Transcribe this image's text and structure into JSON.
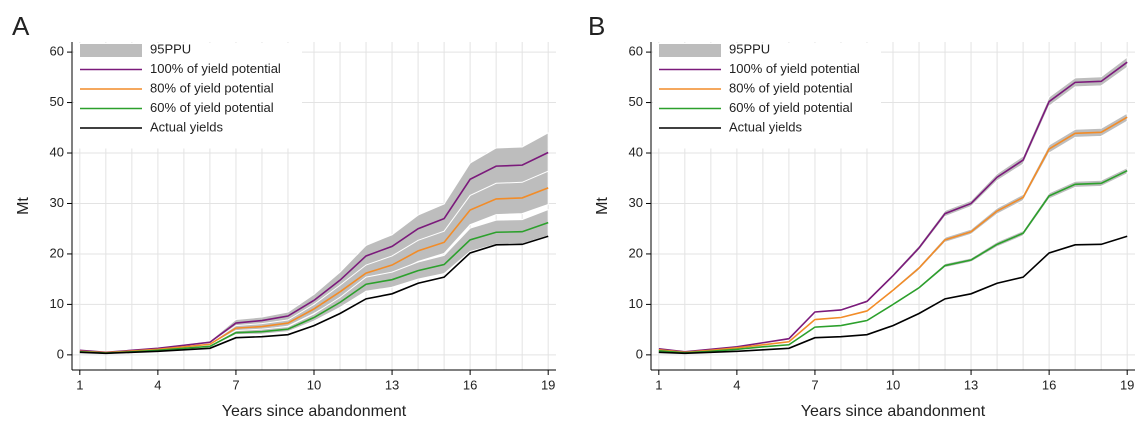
{
  "chart_data": [
    {
      "type": "line",
      "panel_label": "A",
      "xlabel": "Years since abandonment",
      "ylabel": "Mt",
      "x": [
        1,
        2,
        3,
        4,
        5,
        6,
        7,
        8,
        9,
        10,
        11,
        12,
        13,
        14,
        15,
        16,
        17,
        18,
        19
      ],
      "xlim": [
        0.7,
        19.3
      ],
      "xticks": [
        1,
        4,
        7,
        10,
        13,
        16,
        19
      ],
      "ylim": [
        -3,
        62
      ],
      "yticks": [
        0,
        10,
        20,
        30,
        40,
        50,
        60
      ],
      "grid": true,
      "band_label": "95PPU",
      "band_color": "#bdbdbd",
      "series": [
        {
          "name": "100% of yield potential",
          "color": "#7b1a7b",
          "values": [
            0.9,
            0.5,
            0.9,
            1.3,
            1.9,
            2.5,
            6.3,
            6.8,
            7.7,
            10.8,
            14.8,
            19.6,
            21.5,
            25.0,
            27.0,
            34.8,
            37.4,
            37.6,
            40.1
          ],
          "lower": [
            0.8,
            0.4,
            0.8,
            1.1,
            1.7,
            2.2,
            5.7,
            6.1,
            6.9,
            9.7,
            13.3,
            17.6,
            19.3,
            22.5,
            24.3,
            31.3,
            33.7,
            33.8,
            36.1
          ],
          "upper": [
            1.0,
            0.6,
            1.0,
            1.5,
            2.1,
            2.8,
            7.0,
            7.5,
            8.5,
            12.0,
            16.4,
            21.7,
            23.8,
            27.7,
            29.9,
            38.0,
            41.0,
            41.2,
            44.0
          ]
        },
        {
          "name": "80% of yield potential",
          "color": "#f28c28",
          "values": [
            0.7,
            0.45,
            0.75,
            1.1,
            1.6,
            2.1,
            5.3,
            5.6,
            6.3,
            9.1,
            12.5,
            16.2,
            17.8,
            20.6,
            22.3,
            28.7,
            30.9,
            31.1,
            33.1
          ],
          "lower": [
            0.6,
            0.4,
            0.7,
            1.0,
            1.4,
            1.9,
            4.8,
            5.0,
            5.7,
            8.2,
            11.2,
            14.6,
            16.0,
            18.5,
            20.1,
            25.8,
            27.8,
            28.0,
            29.8
          ],
          "upper": [
            0.8,
            0.5,
            0.8,
            1.2,
            1.8,
            2.3,
            5.8,
            6.2,
            6.9,
            10.0,
            13.8,
            17.8,
            19.6,
            22.7,
            24.5,
            31.6,
            34.0,
            34.2,
            36.4
          ]
        },
        {
          "name": "60% of yield potential",
          "color": "#2ca02c",
          "values": [
            0.6,
            0.35,
            0.6,
            0.9,
            1.3,
            1.7,
            4.4,
            4.6,
            5.1,
            7.4,
            10.4,
            14.0,
            14.9,
            16.7,
            17.9,
            22.8,
            24.3,
            24.4,
            26.2
          ],
          "lower": [
            0.5,
            0.3,
            0.5,
            0.8,
            1.2,
            1.5,
            4.0,
            4.1,
            4.6,
            6.7,
            9.4,
            12.6,
            13.4,
            15.0,
            16.1,
            20.5,
            21.9,
            22.0,
            23.6
          ],
          "upper": [
            0.7,
            0.4,
            0.7,
            1.0,
            1.4,
            1.9,
            4.8,
            5.1,
            5.6,
            8.1,
            11.4,
            15.4,
            16.4,
            18.4,
            19.7,
            25.1,
            26.7,
            26.8,
            28.8
          ]
        },
        {
          "name": "Actual yields",
          "color": "#000000",
          "values": [
            0.5,
            0.3,
            0.5,
            0.7,
            1.0,
            1.3,
            3.4,
            3.6,
            4.0,
            5.8,
            8.2,
            11.1,
            12.1,
            14.2,
            15.4,
            20.2,
            21.8,
            21.9,
            23.5
          ]
        }
      ]
    },
    {
      "type": "line",
      "panel_label": "B",
      "xlabel": "Years since abandonment",
      "ylabel": "Mt",
      "x": [
        1,
        2,
        3,
        4,
        5,
        6,
        7,
        8,
        9,
        10,
        11,
        12,
        13,
        14,
        15,
        16,
        17,
        18,
        19
      ],
      "xlim": [
        0.7,
        19.3
      ],
      "xticks": [
        1,
        4,
        7,
        10,
        13,
        16,
        19
      ],
      "ylim": [
        -3,
        62
      ],
      "yticks": [
        0,
        10,
        20,
        30,
        40,
        50,
        60
      ],
      "grid": true,
      "band_label": "95PPU",
      "band_color": "#bdbdbd",
      "series": [
        {
          "name": "100% of yield potential",
          "color": "#7b1a7b",
          "values": [
            1.2,
            0.6,
            1.1,
            1.6,
            2.4,
            3.2,
            8.5,
            8.9,
            10.6,
            15.7,
            21.2,
            28.0,
            30.0,
            35.2,
            38.6,
            50.2,
            54.0,
            54.2,
            58.0
          ],
          "lower": [
            1.1,
            0.5,
            1.0,
            1.5,
            2.3,
            3.0,
            8.3,
            8.7,
            10.3,
            15.3,
            20.7,
            27.4,
            29.4,
            34.5,
            37.8,
            49.3,
            53.1,
            53.3,
            57.0
          ],
          "upper": [
            1.3,
            0.7,
            1.2,
            1.7,
            2.5,
            3.4,
            8.7,
            9.1,
            10.9,
            16.1,
            21.7,
            28.6,
            30.6,
            35.9,
            39.4,
            51.1,
            54.9,
            55.1,
            59.0
          ]
        },
        {
          "name": "80% of yield potential",
          "color": "#f28c28",
          "values": [
            1.0,
            0.5,
            0.9,
            1.4,
            2.0,
            2.6,
            7.0,
            7.4,
            8.7,
            12.8,
            17.2,
            22.8,
            24.4,
            28.5,
            31.2,
            40.8,
            43.9,
            44.1,
            47.1
          ],
          "lower": [
            0.9,
            0.4,
            0.8,
            1.3,
            1.9,
            2.4,
            6.8,
            7.2,
            8.5,
            12.5,
            16.8,
            22.3,
            23.9,
            27.9,
            30.6,
            40.0,
            43.1,
            43.3,
            46.3
          ],
          "upper": [
            1.1,
            0.6,
            1.0,
            1.5,
            2.1,
            2.8,
            7.2,
            7.6,
            8.9,
            13.1,
            17.6,
            23.3,
            24.9,
            29.1,
            31.8,
            41.6,
            44.7,
            44.9,
            47.9
          ]
        },
        {
          "name": "60% of yield potential",
          "color": "#2ca02c",
          "values": [
            0.8,
            0.4,
            0.7,
            1.1,
            1.6,
            2.0,
            5.5,
            5.8,
            6.8,
            10.0,
            13.3,
            17.7,
            18.8,
            21.9,
            24.1,
            31.5,
            33.8,
            34.0,
            36.5
          ],
          "lower": [
            0.7,
            0.3,
            0.6,
            1.0,
            1.5,
            1.9,
            5.3,
            5.6,
            6.6,
            9.8,
            13.0,
            17.3,
            18.4,
            21.4,
            23.6,
            30.9,
            33.2,
            33.4,
            35.9
          ],
          "upper": [
            0.9,
            0.5,
            0.8,
            1.2,
            1.7,
            2.1,
            5.7,
            6.0,
            7.0,
            10.2,
            13.6,
            18.1,
            19.2,
            22.4,
            24.6,
            32.1,
            34.4,
            34.6,
            37.1
          ]
        },
        {
          "name": "Actual yields",
          "color": "#000000",
          "values": [
            0.5,
            0.3,
            0.5,
            0.7,
            1.0,
            1.3,
            3.4,
            3.6,
            4.0,
            5.8,
            8.2,
            11.1,
            12.1,
            14.2,
            15.4,
            20.2,
            21.8,
            21.9,
            23.5
          ]
        }
      ]
    }
  ]
}
